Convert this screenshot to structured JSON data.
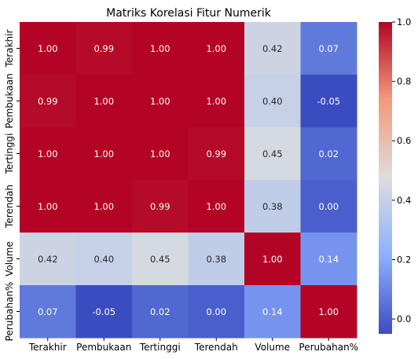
{
  "chart_data": {
    "type": "heatmap",
    "title": "Matriks Korelasi Fitur Numerik",
    "rows": [
      "Terakhir",
      "Pembukaan",
      "Tertinggi",
      "Terendah",
      "Volume",
      "Perubahan%"
    ],
    "columns": [
      "Terakhir",
      "Pembukaan",
      "Tertinggi",
      "Terendah",
      "Volume",
      "Perubahan%"
    ],
    "values": [
      [
        1.0,
        0.99,
        1.0,
        1.0,
        0.42,
        0.07
      ],
      [
        0.99,
        1.0,
        1.0,
        1.0,
        0.4,
        -0.05
      ],
      [
        1.0,
        1.0,
        1.0,
        0.99,
        0.45,
        0.02
      ],
      [
        1.0,
        1.0,
        0.99,
        1.0,
        0.38,
        0.0
      ],
      [
        0.42,
        0.4,
        0.45,
        0.38,
        1.0,
        0.14
      ],
      [
        0.07,
        -0.05,
        0.02,
        0.0,
        0.14,
        1.0
      ]
    ],
    "annotation_format": "0.00",
    "colormap": "coolwarm",
    "colorbar": {
      "range": [
        -0.05,
        1.0
      ],
      "ticks": [
        0.0,
        0.2,
        0.4,
        0.6,
        0.8,
        1.0
      ],
      "tick_labels": [
        "0.0",
        "0.2",
        "0.4",
        "0.6",
        "0.8",
        "1.0"
      ]
    },
    "grid": false
  }
}
